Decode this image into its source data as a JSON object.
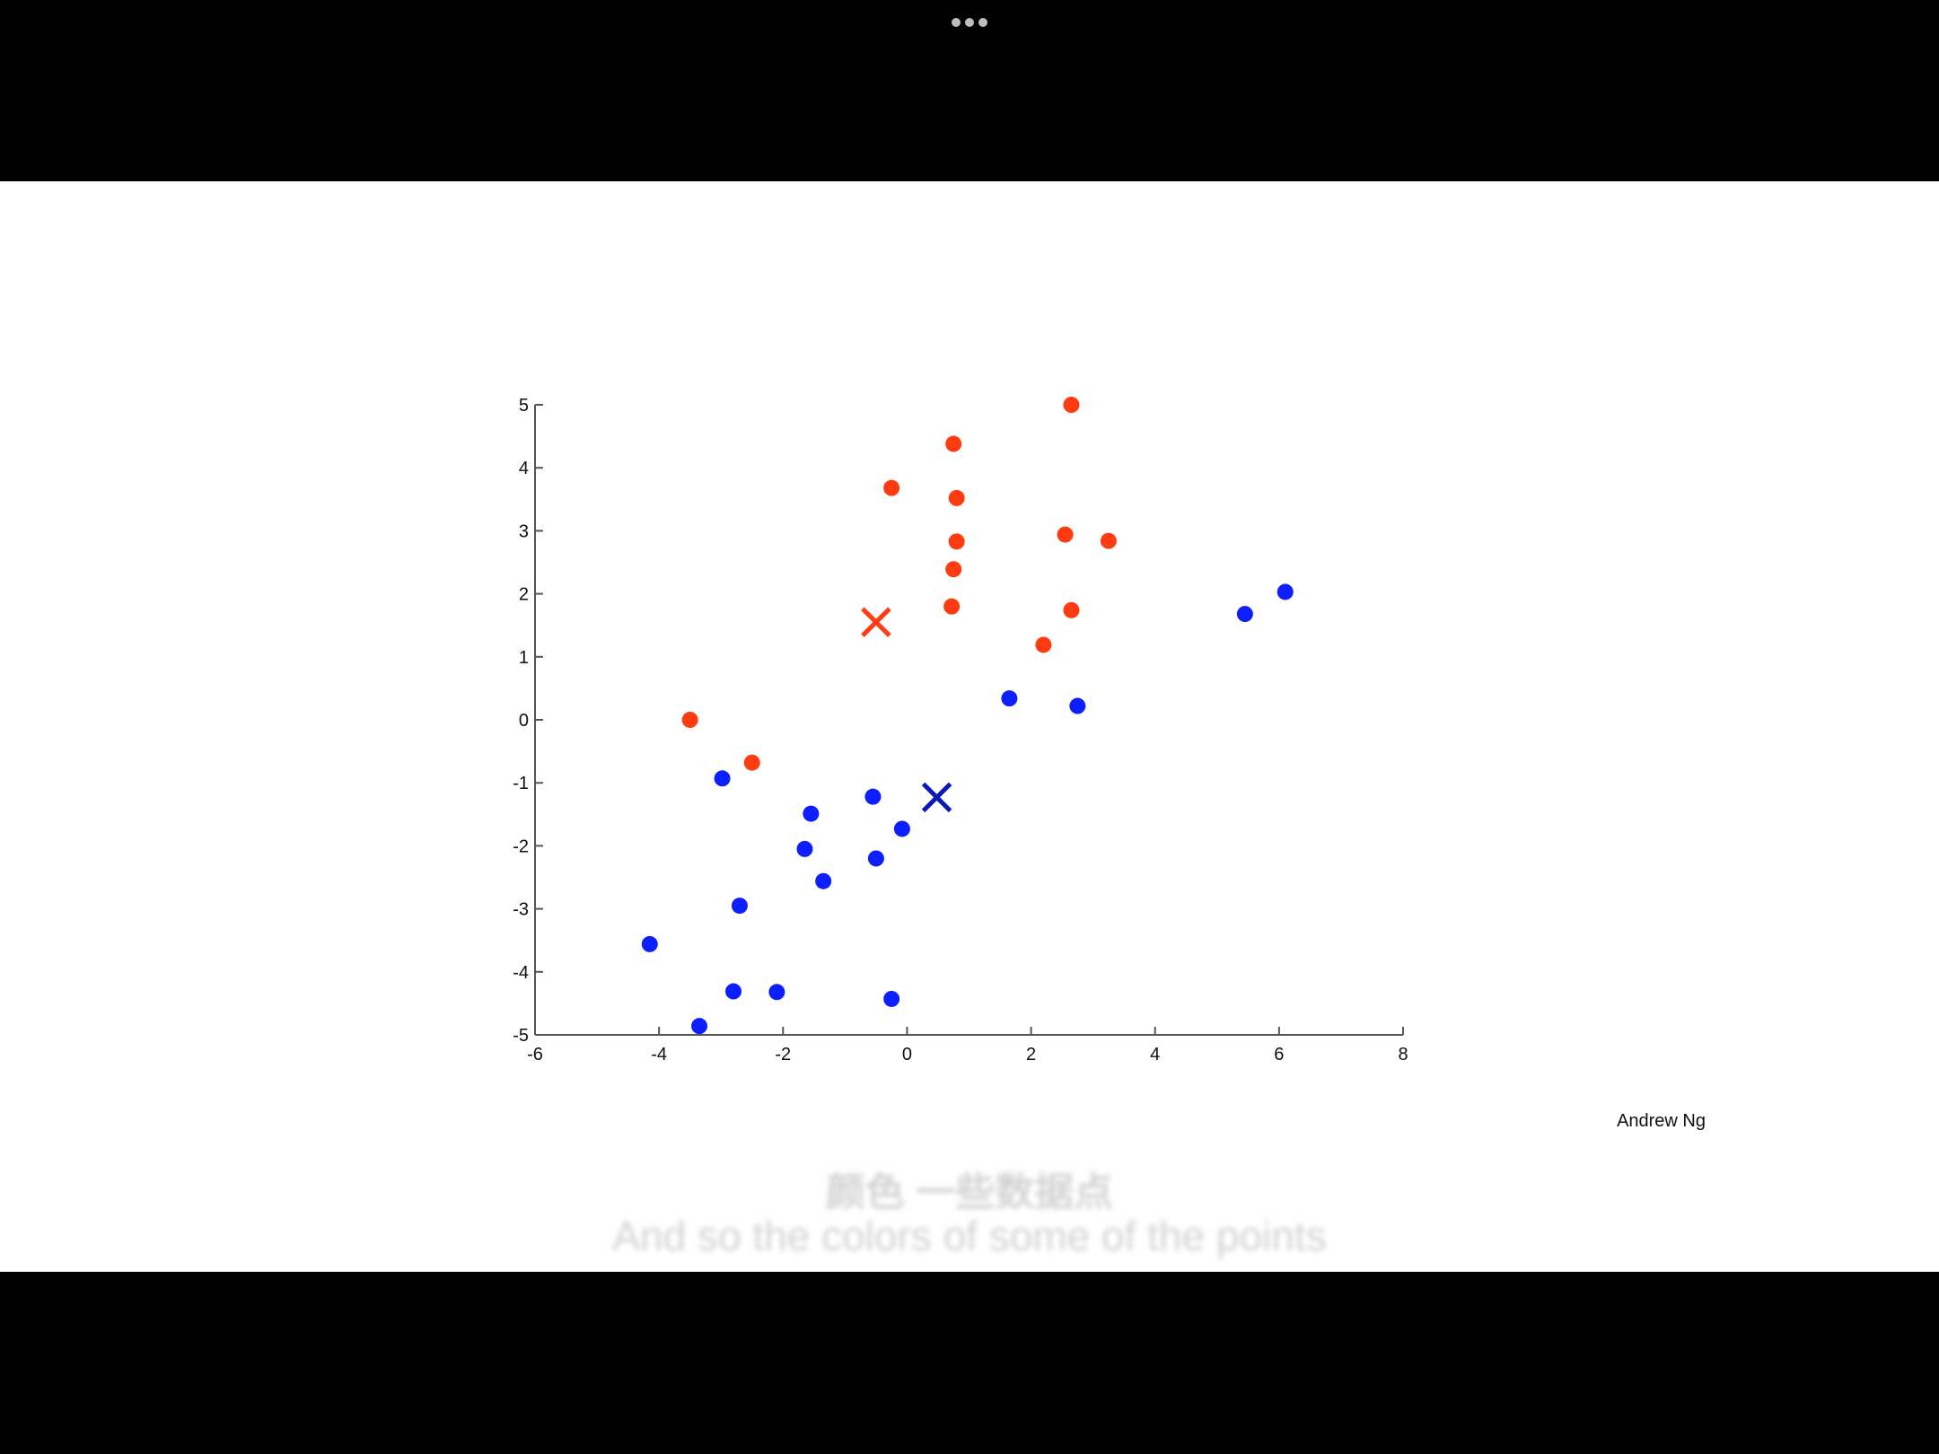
{
  "window": {
    "more_icon": "more-horizontal-icon"
  },
  "slide": {
    "author": "Andrew Ng",
    "subtitle_cn": "颜色 一些数据点",
    "subtitle_en": "And so the colors of some of the points"
  },
  "chart_data": {
    "type": "scatter",
    "title": "",
    "xlabel": "",
    "ylabel": "",
    "xlim": [
      -6,
      8
    ],
    "ylim": [
      -5,
      5
    ],
    "xticks": [
      -6,
      -4,
      -2,
      0,
      2,
      4,
      6,
      8
    ],
    "yticks": [
      -5,
      -4,
      -3,
      -2,
      -1,
      0,
      1,
      2,
      3,
      4,
      5
    ],
    "grid": false,
    "series": [
      {
        "color": "#ff3b12",
        "marker": "circle",
        "points": [
          [
            2.65,
            5.0
          ],
          [
            0.75,
            4.38
          ],
          [
            -0.25,
            3.68
          ],
          [
            0.8,
            3.52
          ],
          [
            0.8,
            2.83
          ],
          [
            2.55,
            2.94
          ],
          [
            3.25,
            2.84
          ],
          [
            0.75,
            2.39
          ],
          [
            0.72,
            1.8
          ],
          [
            2.65,
            1.74
          ],
          [
            2.2,
            1.19
          ],
          [
            -3.5,
            0.0
          ],
          [
            -2.5,
            -0.68
          ]
        ]
      },
      {
        "color": "#0d1eff",
        "marker": "circle",
        "points": [
          [
            6.1,
            2.03
          ],
          [
            5.45,
            1.68
          ],
          [
            1.65,
            0.34
          ],
          [
            2.75,
            0.22
          ],
          [
            -2.98,
            -0.93
          ],
          [
            -0.55,
            -1.22
          ],
          [
            -1.55,
            -1.49
          ],
          [
            -0.08,
            -1.73
          ],
          [
            -1.65,
            -2.05
          ],
          [
            -0.5,
            -2.2
          ],
          [
            -1.35,
            -2.56
          ],
          [
            -2.7,
            -2.95
          ],
          [
            -4.15,
            -3.56
          ],
          [
            -2.8,
            -4.31
          ],
          [
            -2.1,
            -4.32
          ],
          [
            -0.25,
            -4.43
          ],
          [
            -3.35,
            -4.86
          ]
        ]
      }
    ],
    "centroids": [
      {
        "color": "#ff3b12",
        "marker": "x",
        "x": -0.5,
        "y": 1.55
      },
      {
        "color": "#0a18b8",
        "marker": "x",
        "x": 0.48,
        "y": -1.23
      }
    ]
  }
}
